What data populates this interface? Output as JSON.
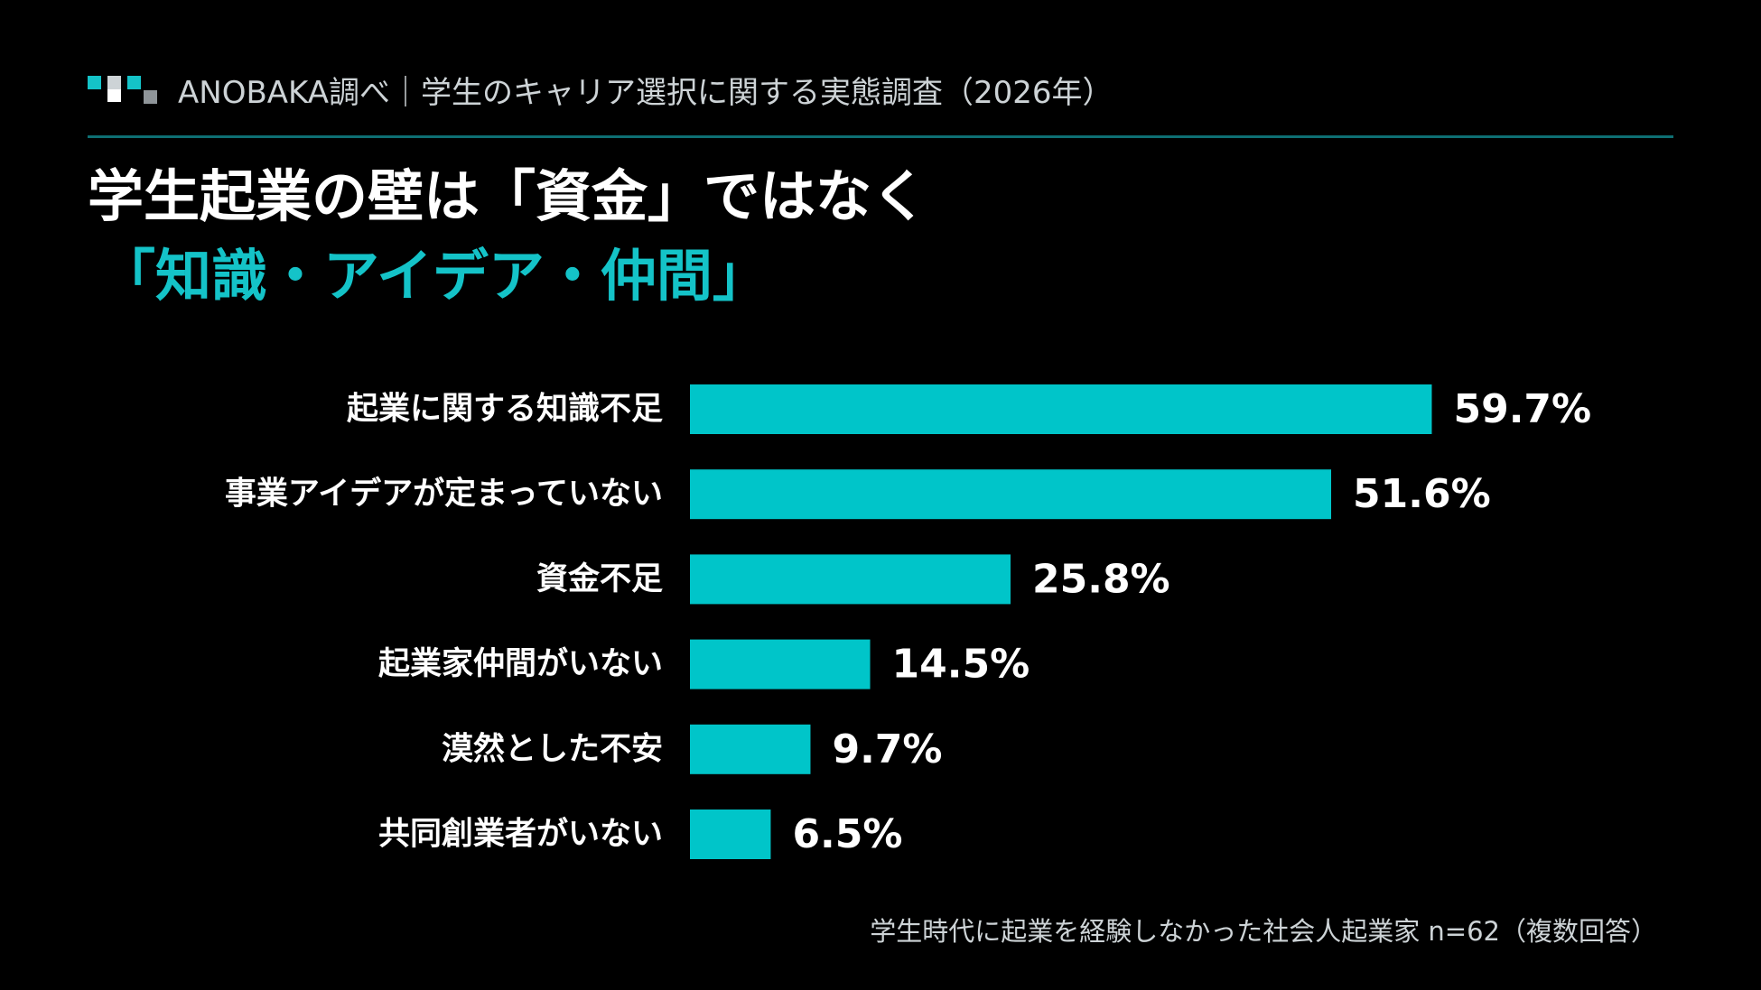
{
  "header": {
    "source": "ANOBAKA調べ｜学生のキャリア選択に関する実態調査（2026年）",
    "logo_colors": [
      "#14c3c8",
      "#ffffff",
      "#14c3c8",
      "#cdd3d6",
      "#8f9599"
    ]
  },
  "headline": {
    "line1": "学生起業の壁は「資金」ではなく",
    "line2": "「知識・アイデア・仲間」"
  },
  "colors": {
    "accent": "#14c3c8",
    "bar": "#00c5c9",
    "divider": "#0e6f73",
    "background": "#000000"
  },
  "chart_data": {
    "type": "bar",
    "orientation": "horizontal",
    "categories": [
      "起業に関する知識不足",
      "事業アイデアが定まっていない",
      "資金不足",
      "起業家仲間がいない",
      "漠然とした不安",
      "共同創業者がいない"
    ],
    "values": [
      59.7,
      51.6,
      25.8,
      14.5,
      9.7,
      6.5
    ],
    "value_labels": [
      "59.7%",
      "51.6%",
      "25.8%",
      "14.5%",
      "9.7%",
      "6.5%"
    ],
    "unit": "%",
    "grid": false,
    "axes_visible": false
  },
  "footnote": "学生時代に起業を経験しなかった社会人起業家 n=62（複数回答）"
}
